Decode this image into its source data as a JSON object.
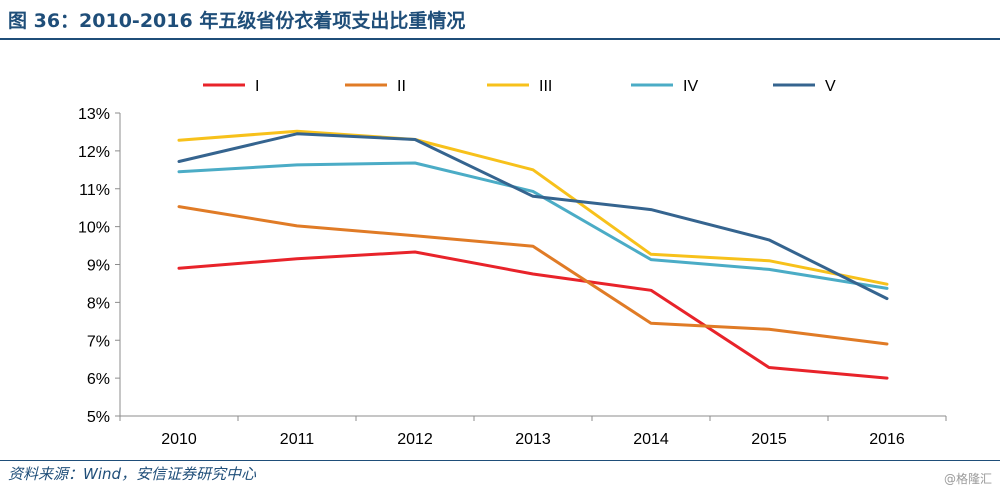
{
  "header": {
    "title": "图 36：2010-2016 年五级省份衣着项支出比重情况"
  },
  "footer": {
    "source": "资料来源：Wind，安信证券研究中心",
    "watermark": "@格隆汇"
  },
  "chart_data": {
    "type": "line",
    "title": "",
    "xlabel": "",
    "ylabel": "",
    "x": [
      "2010",
      "2011",
      "2012",
      "2013",
      "2014",
      "2015",
      "2016"
    ],
    "ylim": [
      5,
      13
    ],
    "yticks": [
      "5%",
      "6%",
      "7%",
      "8%",
      "9%",
      "10%",
      "11%",
      "12%",
      "13%"
    ],
    "grid": false,
    "legend": "top",
    "series": [
      {
        "name": "I",
        "color": "#e8232a",
        "values": [
          8.9,
          9.15,
          9.33,
          8.75,
          8.32,
          6.28,
          6.0
        ]
      },
      {
        "name": "II",
        "color": "#e07b26",
        "values": [
          10.53,
          10.02,
          9.76,
          9.48,
          7.45,
          7.29,
          6.9
        ]
      },
      {
        "name": "III",
        "color": "#f7c11b",
        "values": [
          12.28,
          12.52,
          12.3,
          11.5,
          9.27,
          9.1,
          8.48
        ]
      },
      {
        "name": "IV",
        "color": "#4bacc6",
        "values": [
          11.45,
          11.63,
          11.68,
          10.93,
          9.13,
          8.87,
          8.37
        ]
      },
      {
        "name": "V",
        "color": "#35648f",
        "values": [
          11.72,
          12.45,
          12.3,
          10.8,
          10.45,
          9.65,
          8.1
        ]
      }
    ]
  }
}
